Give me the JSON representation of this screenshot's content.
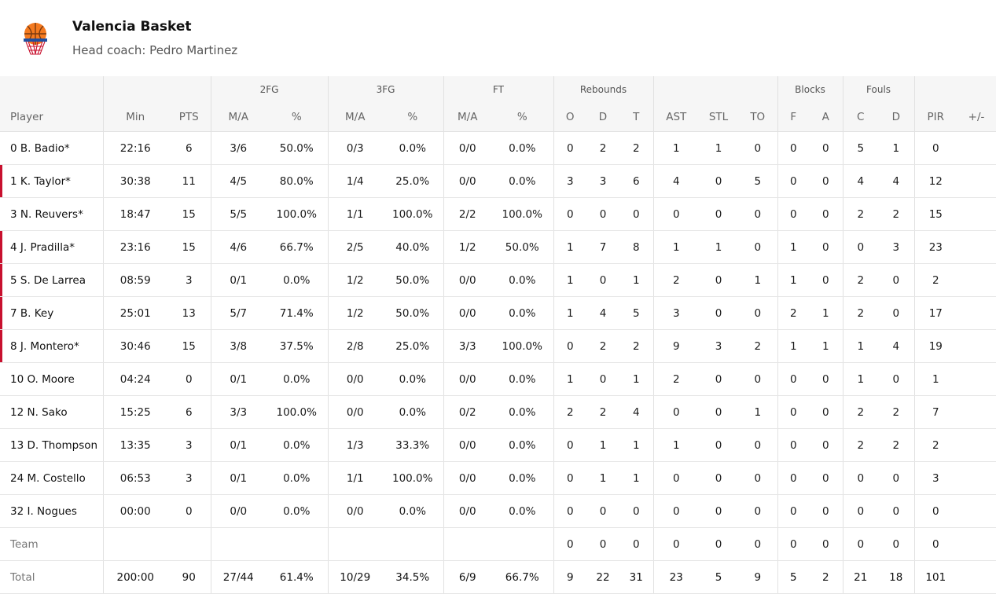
{
  "team": {
    "name": "Valencia Basket",
    "coach": "Head coach: Pedro Martinez"
  },
  "colors": {
    "starter_marker": "#c8102e",
    "header_bg": "#f6f6f6",
    "logo_orange": "#f47a20"
  },
  "groups": {
    "fg2": "2FG",
    "fg3": "3FG",
    "ft": "FT",
    "rebounds": "Rebounds",
    "blocks": "Blocks",
    "fouls": "Fouls"
  },
  "columns": [
    "Player",
    "Min",
    "PTS",
    "M/A",
    "%",
    "M/A",
    "%",
    "M/A",
    "%",
    "O",
    "D",
    "T",
    "AST",
    "STL",
    "TO",
    "F",
    "A",
    "C",
    "D",
    "PIR",
    "+/-"
  ],
  "rows": [
    {
      "starter": false,
      "cells": [
        "0 B. Badio*",
        "22:16",
        "6",
        "3/6",
        "50.0%",
        "0/3",
        "0.0%",
        "0/0",
        "0.0%",
        "0",
        "2",
        "2",
        "1",
        "1",
        "0",
        "0",
        "0",
        "5",
        "1",
        "0",
        ""
      ]
    },
    {
      "starter": true,
      "cells": [
        "1 K. Taylor*",
        "30:38",
        "11",
        "4/5",
        "80.0%",
        "1/4",
        "25.0%",
        "0/0",
        "0.0%",
        "3",
        "3",
        "6",
        "4",
        "0",
        "5",
        "0",
        "0",
        "4",
        "4",
        "12",
        ""
      ]
    },
    {
      "starter": false,
      "cells": [
        "3 N. Reuvers*",
        "18:47",
        "15",
        "5/5",
        "100.0%",
        "1/1",
        "100.0%",
        "2/2",
        "100.0%",
        "0",
        "0",
        "0",
        "0",
        "0",
        "0",
        "0",
        "0",
        "2",
        "2",
        "15",
        ""
      ]
    },
    {
      "starter": true,
      "cells": [
        "4 J. Pradilla*",
        "23:16",
        "15",
        "4/6",
        "66.7%",
        "2/5",
        "40.0%",
        "1/2",
        "50.0%",
        "1",
        "7",
        "8",
        "1",
        "1",
        "0",
        "1",
        "0",
        "0",
        "3",
        "23",
        ""
      ]
    },
    {
      "starter": true,
      "cells": [
        "5 S. De Larrea",
        "08:59",
        "3",
        "0/1",
        "0.0%",
        "1/2",
        "50.0%",
        "0/0",
        "0.0%",
        "1",
        "0",
        "1",
        "2",
        "0",
        "1",
        "1",
        "0",
        "2",
        "0",
        "2",
        ""
      ]
    },
    {
      "starter": true,
      "cells": [
        "7 B. Key",
        "25:01",
        "13",
        "5/7",
        "71.4%",
        "1/2",
        "50.0%",
        "0/0",
        "0.0%",
        "1",
        "4",
        "5",
        "3",
        "0",
        "0",
        "2",
        "1",
        "2",
        "0",
        "17",
        ""
      ]
    },
    {
      "starter": true,
      "cells": [
        "8 J. Montero*",
        "30:46",
        "15",
        "3/8",
        "37.5%",
        "2/8",
        "25.0%",
        "3/3",
        "100.0%",
        "0",
        "2",
        "2",
        "9",
        "3",
        "2",
        "1",
        "1",
        "1",
        "4",
        "19",
        ""
      ]
    },
    {
      "starter": false,
      "cells": [
        "10 O. Moore",
        "04:24",
        "0",
        "0/1",
        "0.0%",
        "0/0",
        "0.0%",
        "0/0",
        "0.0%",
        "1",
        "0",
        "1",
        "2",
        "0",
        "0",
        "0",
        "0",
        "1",
        "0",
        "1",
        ""
      ]
    },
    {
      "starter": false,
      "cells": [
        "12 N. Sako",
        "15:25",
        "6",
        "3/3",
        "100.0%",
        "0/0",
        "0.0%",
        "0/2",
        "0.0%",
        "2",
        "2",
        "4",
        "0",
        "0",
        "1",
        "0",
        "0",
        "2",
        "2",
        "7",
        ""
      ]
    },
    {
      "starter": false,
      "cells": [
        "13 D. Thompson",
        "13:35",
        "3",
        "0/1",
        "0.0%",
        "1/3",
        "33.3%",
        "0/0",
        "0.0%",
        "0",
        "1",
        "1",
        "1",
        "0",
        "0",
        "0",
        "0",
        "2",
        "2",
        "2",
        ""
      ]
    },
    {
      "starter": false,
      "cells": [
        "24 M. Costello",
        "06:53",
        "3",
        "0/1",
        "0.0%",
        "1/1",
        "100.0%",
        "0/0",
        "0.0%",
        "0",
        "1",
        "1",
        "0",
        "0",
        "0",
        "0",
        "0",
        "0",
        "0",
        "3",
        ""
      ]
    },
    {
      "starter": false,
      "cells": [
        "32 I. Nogues",
        "00:00",
        "0",
        "0/0",
        "0.0%",
        "0/0",
        "0.0%",
        "0/0",
        "0.0%",
        "0",
        "0",
        "0",
        "0",
        "0",
        "0",
        "0",
        "0",
        "0",
        "0",
        "0",
        ""
      ]
    }
  ],
  "team_row": [
    "Team",
    "",
    "",
    "",
    "",
    "",
    "",
    "",
    "",
    "0",
    "0",
    "0",
    "0",
    "0",
    "0",
    "0",
    "0",
    "0",
    "0",
    "0",
    ""
  ],
  "total_row": [
    "Total",
    "200:00",
    "90",
    "27/44",
    "61.4%",
    "10/29",
    "34.5%",
    "6/9",
    "66.7%",
    "9",
    "22",
    "31",
    "23",
    "5",
    "9",
    "5",
    "2",
    "21",
    "18",
    "101",
    ""
  ]
}
